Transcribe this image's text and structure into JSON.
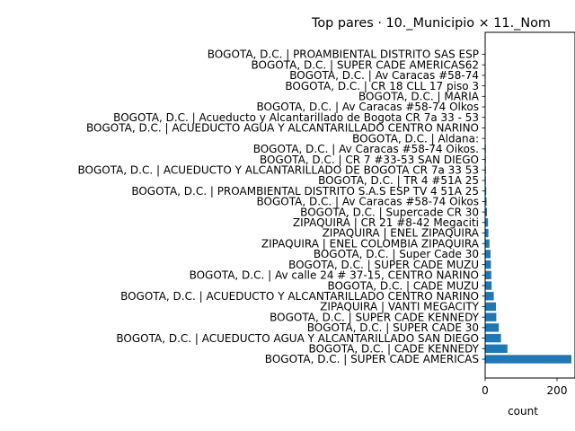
{
  "chart_data": {
    "type": "bar",
    "orientation": "horizontal",
    "title": "Top pares · 10._Municipio × 11._Nom",
    "xlabel": "count",
    "ylabel": "",
    "xlim": [
      0,
      250
    ],
    "xticks": [
      0,
      200
    ],
    "grid": false,
    "bar_color": "#1f77b4",
    "categories": [
      "BOGOTA, D.C. | PROAMBIENTAL DISTRITO SAS ESP",
      "BOGOTA, D.C. | SUPER CADE AMERICAS62",
      "BOGOTA, D.C. | Av Caracas #58-74",
      "BOGOTA, D.C. | CR 18 CLL 17 piso 3",
      "BOGOTA, D.C. | MARIA",
      "BOGOTA, D.C. | Av Caracas #58-74 Olkos",
      "BOGOTA, D.C. | Acueducto y Alcantarillado de Bogota CR 7a 33 - 53",
      "BOGOTA, D.C. | ACUEDUCTO AGUA Y ALCANTARILLADO CENTRO NARINO",
      "BOGOTA, D.C. | Aldana:",
      "BOGOTA, D.C. | Av Caracas #58-74 Oikos.",
      "BOGOTA, D.C. | CR 7 #33-53 SAN DIEGO",
      "BOGOTA, D.C. | ACUEDUCTO Y ALCANTARILLADO DE BOGOTA CR 7a 33 53",
      "BOGOTA, D.C. | TR 4 #51A 25",
      "BOGOTA, D.C. | PROAMBIENTAL DISTRITO S.A.S ESP TV 4 51A 25",
      "BOGOTA, D.C. | Av Caracas #58-74 Oikos",
      "BOGOTA, D.C. | Supercade CR 30",
      "ZIPAQUIRÁ | CR 21 #8-42 Megaciti",
      "ZIPAQUIRA | ENEL ZIPAQUIRA",
      "ZIPAQUIRA | ENEL COLOMBIA ZIPAQUIRA",
      "BOGOTA, D.C. | Super Cade 30",
      "BOGOTA, D.C. | SUPER CADE MUZU",
      "BOGOTA, D.C. | Av calle 24 # 37-15, CENTRO NARINO",
      "BOGOTA, D.C. | CADE MUZU",
      "BOGOTA, D.C. | ACUEDUCTO Y ALCANTARILLADO CENTRO NARINO",
      "ZIPAQUIRA | VANTI MEGACITY",
      "BOGOTA, D.C. | SUPER CADE KENNEDY",
      "BOGOTA, D.C. | SUPER CADE 30",
      "BOGOTA, D.C. | ACUEDUCTO AGUA Y ALCANTARILLADO SAN DIEGO",
      "BOGOTA, D.C. | CADE KENNEDY",
      "BOGOTA, D.C. | SUPER CADE AMERICAS"
    ],
    "values": [
      1,
      1,
      1,
      1,
      1,
      1,
      1,
      1,
      1,
      2,
      2,
      2,
      2,
      3,
      4,
      5,
      8,
      9,
      12,
      15,
      16,
      17,
      18,
      24,
      30,
      31,
      38,
      44,
      62,
      240
    ]
  }
}
